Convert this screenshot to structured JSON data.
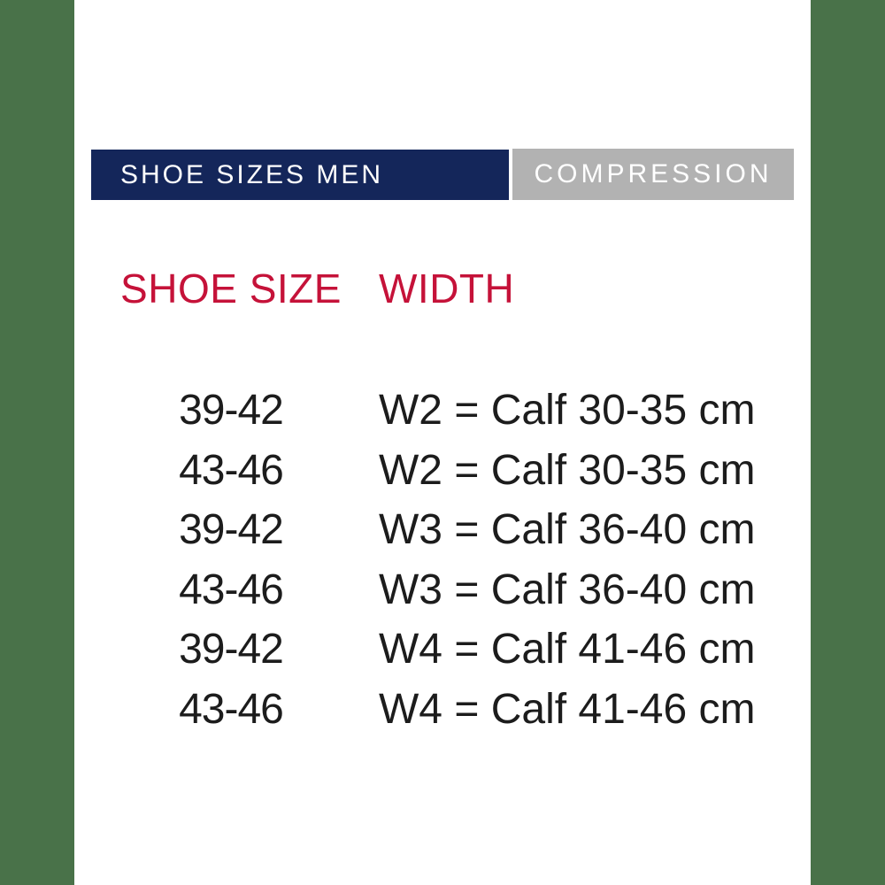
{
  "page": {
    "background_color": "#ffffff",
    "side_stripe_color": "#497249"
  },
  "header": {
    "left_tab": {
      "label": "SHOE SIZES MEN",
      "bg_color": "#14265a",
      "text_color": "#ffffff"
    },
    "right_tab": {
      "label": "COMPRESSION",
      "bg_color": "#b2b2b2",
      "text_color": "#ffffff"
    }
  },
  "table": {
    "accent_color": "#c51239",
    "text_color": "#1c1c1c",
    "columns": {
      "size_label": "SHOE SIZE",
      "width_label": "WIDTH"
    },
    "rows": [
      {
        "shoe_size": "39-42",
        "width": "W2 = Calf 30-35 cm"
      },
      {
        "shoe_size": "43-46",
        "width": "W2 = Calf 30-35 cm"
      },
      {
        "shoe_size": "39-42",
        "width": "W3 = Calf 36-40 cm"
      },
      {
        "shoe_size": "43-46",
        "width": "W3 = Calf 36-40 cm"
      },
      {
        "shoe_size": "39-42",
        "width": "W4 = Calf 41-46 cm"
      },
      {
        "shoe_size": "43-46",
        "width": "W4 = Calf 41-46 cm"
      }
    ]
  },
  "chart_data": {
    "type": "table",
    "title": "SHOE SIZES MEN - COMPRESSION",
    "columns": [
      "SHOE SIZE",
      "WIDTH"
    ],
    "rows": [
      [
        "39-42",
        "W2 = Calf 30-35 cm"
      ],
      [
        "43-46",
        "W2 = Calf 30-35 cm"
      ],
      [
        "39-42",
        "W3 = Calf 36-40 cm"
      ],
      [
        "43-46",
        "W3 = Calf 36-40 cm"
      ],
      [
        "39-42",
        "W4 = Calf 41-46 cm"
      ],
      [
        "43-46",
        "W4 = Calf 41-46 cm"
      ]
    ],
    "widths": [
      {
        "code": "W2",
        "calf_cm_min": 30,
        "calf_cm_max": 35
      },
      {
        "code": "W3",
        "calf_cm_min": 36,
        "calf_cm_max": 40
      },
      {
        "code": "W4",
        "calf_cm_min": 41,
        "calf_cm_max": 46
      }
    ],
    "shoe_size_ranges": [
      "39-42",
      "43-46"
    ]
  }
}
